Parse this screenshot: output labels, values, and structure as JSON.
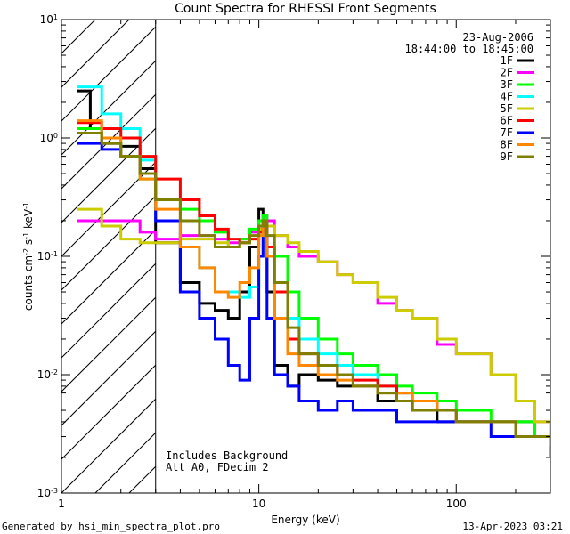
{
  "chart_data": {
    "type": "line",
    "title": "Count Spectra for RHESSI Front Segments",
    "xlabel": "Energy (keV)",
    "ylabel": "counts cm-2 s-1 keV-1",
    "xscale": "log",
    "yscale": "log",
    "xlim": [
      1,
      300
    ],
    "ylim": [
      0.001,
      10
    ],
    "x_ticks": [
      {
        "v": 1,
        "label": "1"
      },
      {
        "v": 10,
        "label": "10"
      },
      {
        "v": 100,
        "label": "100"
      }
    ],
    "y_ticks": [
      {
        "v": 0.001,
        "base": "10",
        "exp": "-3"
      },
      {
        "v": 0.01,
        "base": "10",
        "exp": "-2"
      },
      {
        "v": 0.1,
        "base": "10",
        "exp": "-1"
      },
      {
        "v": 1,
        "base": "10",
        "exp": "0"
      },
      {
        "v": 10,
        "base": "10",
        "exp": "1"
      }
    ],
    "excluded_region_keV": [
      1,
      3
    ],
    "date": "23-Aug-2006",
    "time_range": "18:44:00 to 18:45:00",
    "notes": [
      "Includes Background",
      "Att A0, FDecim 2"
    ],
    "series": [
      {
        "name": "1F",
        "color": "#000000",
        "x": [
          1.2,
          1.4,
          1.6,
          2.0,
          2.5,
          3.0,
          4.0,
          5.0,
          6.0,
          7.0,
          8.0,
          9.0,
          10.0,
          10.5,
          11,
          12,
          14,
          16,
          20,
          25,
          30,
          40,
          50,
          60,
          80,
          100,
          150,
          200,
          250,
          300
        ],
        "y": [
          2.5,
          1.2,
          0.9,
          0.85,
          0.55,
          0.13,
          0.06,
          0.04,
          0.035,
          0.03,
          0.05,
          0.12,
          0.25,
          0.18,
          0.05,
          0.012,
          0.008,
          0.01,
          0.009,
          0.008,
          0.008,
          0.006,
          0.006,
          0.005,
          0.004,
          0.004,
          0.004,
          0.004,
          0.003,
          0.003
        ]
      },
      {
        "name": "2F",
        "color": "#ff00ff",
        "x": [
          1.2,
          1.6,
          2.0,
          2.5,
          3.0,
          4.0,
          5.0,
          6.0,
          7.0,
          8.0,
          9.0,
          10.0,
          10.5,
          11,
          12,
          14,
          16,
          20,
          25,
          30,
          40,
          50,
          60,
          80,
          100,
          150,
          200,
          250,
          300
        ],
        "y": [
          0.2,
          0.2,
          0.2,
          0.16,
          0.14,
          0.15,
          0.15,
          0.14,
          0.13,
          0.14,
          0.16,
          0.2,
          0.22,
          0.2,
          0.15,
          0.12,
          0.1,
          0.09,
          0.07,
          0.06,
          0.04,
          0.035,
          0.03,
          0.018,
          0.015,
          0.01,
          0.006,
          0.004,
          0.0028
        ]
      },
      {
        "name": "3F",
        "color": "#00ff00",
        "x": [
          1.2,
          1.6,
          2.0,
          2.5,
          3.0,
          4.0,
          5.0,
          6.0,
          7.0,
          8.0,
          9.0,
          10.0,
          10.5,
          11,
          12,
          14,
          16,
          20,
          25,
          30,
          40,
          50,
          60,
          80,
          100,
          150,
          200,
          250,
          300
        ],
        "y": [
          1.2,
          1.0,
          0.7,
          0.45,
          0.3,
          0.25,
          0.2,
          0.16,
          0.12,
          0.14,
          0.17,
          0.2,
          0.22,
          0.18,
          0.1,
          0.05,
          0.03,
          0.02,
          0.015,
          0.012,
          0.01,
          0.008,
          0.007,
          0.006,
          0.005,
          0.004,
          0.004,
          0.003,
          0.003
        ]
      },
      {
        "name": "4F",
        "color": "#00ffff",
        "x": [
          1.2,
          1.6,
          2.0,
          2.5,
          3.0,
          4.0,
          5.0,
          6.0,
          7.0,
          8.0,
          9.0,
          10.0,
          10.5,
          11,
          12,
          14,
          16,
          20,
          25,
          30,
          40,
          50,
          60,
          80,
          100,
          150,
          200,
          250,
          300
        ],
        "y": [
          2.7,
          1.6,
          1.2,
          0.65,
          0.2,
          0.12,
          0.08,
          0.05,
          0.05,
          0.045,
          0.055,
          0.1,
          0.2,
          0.12,
          0.06,
          0.03,
          0.02,
          0.015,
          0.012,
          0.01,
          0.008,
          0.007,
          0.006,
          0.005,
          0.004,
          0.004,
          0.003,
          0.003,
          0.0025
        ]
      },
      {
        "name": "5F",
        "color": "#cccc00",
        "x": [
          1.2,
          1.6,
          2.0,
          2.5,
          3.0,
          4.0,
          5.0,
          6.0,
          7.0,
          8.0,
          9.0,
          10.0,
          10.5,
          11,
          12,
          14,
          16,
          20,
          25,
          30,
          40,
          50,
          60,
          80,
          100,
          150,
          200,
          250,
          300
        ],
        "y": [
          0.25,
          0.18,
          0.14,
          0.13,
          0.13,
          0.14,
          0.14,
          0.13,
          0.12,
          0.13,
          0.14,
          0.17,
          0.2,
          0.18,
          0.15,
          0.13,
          0.11,
          0.09,
          0.07,
          0.06,
          0.045,
          0.035,
          0.03,
          0.02,
          0.015,
          0.01,
          0.006,
          0.004,
          0.003
        ]
      },
      {
        "name": "6F",
        "color": "#ff0000",
        "x": [
          1.2,
          1.6,
          2.0,
          2.5,
          3.0,
          4.0,
          5.0,
          6.0,
          7.0,
          8.0,
          9.0,
          10.0,
          10.5,
          11,
          12,
          14,
          16,
          20,
          25,
          30,
          40,
          50,
          60,
          80,
          100,
          150,
          200,
          250,
          300
        ],
        "y": [
          1.35,
          1.2,
          1.0,
          0.7,
          0.45,
          0.3,
          0.22,
          0.17,
          0.14,
          0.13,
          0.14,
          0.16,
          0.2,
          0.12,
          0.05,
          0.02,
          0.015,
          0.012,
          0.01,
          0.009,
          0.008,
          0.007,
          0.006,
          0.005,
          0.004,
          0.004,
          0.003,
          0.003,
          0.002
        ]
      },
      {
        "name": "7F",
        "color": "#0000ff",
        "x": [
          1.2,
          1.6,
          2.0,
          2.5,
          3.0,
          4.0,
          5.0,
          6.0,
          7.0,
          8.0,
          9.0,
          10.0,
          10.5,
          11,
          12,
          14,
          16,
          20,
          25,
          30,
          40,
          50,
          60,
          80,
          100,
          150,
          200,
          250,
          300
        ],
        "y": [
          0.9,
          0.8,
          0.7,
          0.5,
          0.2,
          0.05,
          0.03,
          0.02,
          0.012,
          0.009,
          0.03,
          0.1,
          0.2,
          0.03,
          0.01,
          0.008,
          0.006,
          0.005,
          0.006,
          0.005,
          0.005,
          0.004,
          0.004,
          0.004,
          0.004,
          0.003,
          0.003,
          0.003,
          0.0025
        ]
      },
      {
        "name": "8F",
        "color": "#ff8800",
        "x": [
          1.2,
          1.6,
          2.0,
          2.5,
          3.0,
          4.0,
          5.0,
          6.0,
          7.0,
          8.0,
          9.0,
          10.0,
          10.5,
          11,
          12,
          14,
          16,
          20,
          25,
          30,
          40,
          50,
          60,
          80,
          100,
          150,
          200,
          250,
          300
        ],
        "y": [
          1.4,
          1.0,
          0.7,
          0.45,
          0.25,
          0.12,
          0.08,
          0.05,
          0.045,
          0.06,
          0.08,
          0.15,
          0.2,
          0.1,
          0.03,
          0.015,
          0.012,
          0.01,
          0.009,
          0.008,
          0.007,
          0.007,
          0.006,
          0.005,
          0.004,
          0.004,
          0.003,
          0.003,
          0.0025
        ]
      },
      {
        "name": "9F",
        "color": "#808000",
        "x": [
          1.2,
          1.6,
          2.0,
          2.5,
          3.0,
          4.0,
          5.0,
          6.0,
          7.0,
          8.0,
          9.0,
          10.0,
          10.5,
          11,
          12,
          14,
          16,
          20,
          25,
          30,
          40,
          50,
          60,
          80,
          100,
          150,
          200,
          250,
          300
        ],
        "y": [
          1.1,
          0.9,
          0.7,
          0.5,
          0.3,
          0.2,
          0.15,
          0.12,
          0.12,
          0.13,
          0.15,
          0.18,
          0.2,
          0.15,
          0.06,
          0.025,
          0.015,
          0.012,
          0.01,
          0.008,
          0.007,
          0.006,
          0.005,
          0.005,
          0.004,
          0.004,
          0.003,
          0.003,
          0.0025
        ]
      }
    ]
  },
  "footer": {
    "generated_by": "Generated by hsi_min_spectra_plot.pro",
    "timestamp": "13-Apr-2023 03:21"
  }
}
